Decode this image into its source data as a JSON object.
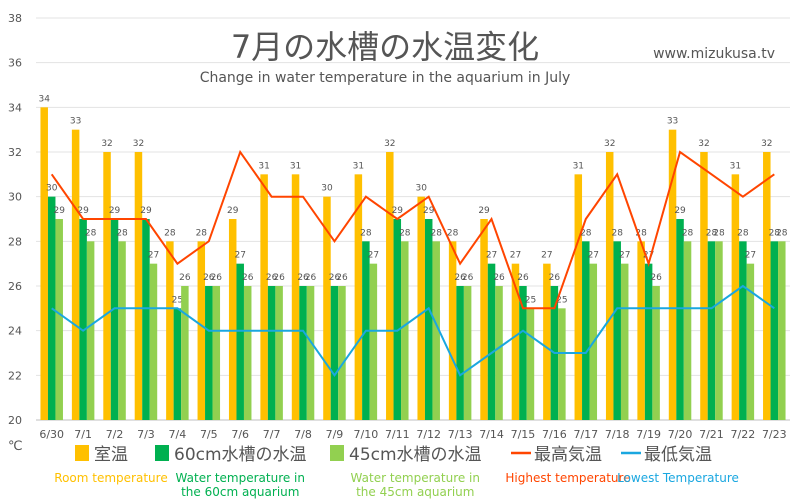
{
  "title": "7月の水槽の水温変化",
  "subtitle": "Change in water temperature in the aquarium in July",
  "source": "www.mizukusa.tv",
  "unit": "℃",
  "chart_data": {
    "type": "bar",
    "categories": [
      "6/30",
      "7/1",
      "7/2",
      "7/3",
      "7/4",
      "7/5",
      "7/6",
      "7/7",
      "7/8",
      "7/9",
      "7/10",
      "7/11",
      "7/12",
      "7/13",
      "7/14",
      "7/15",
      "7/16",
      "7/17",
      "7/18",
      "7/19",
      "7/20",
      "7/21",
      "7/22",
      "7/23"
    ],
    "ylim": [
      20,
      38
    ],
    "yticks": [
      20,
      22,
      24,
      26,
      28,
      30,
      32,
      34,
      36,
      38
    ],
    "grid": true,
    "legend_position": "bottom",
    "series": [
      {
        "name": "室温",
        "sub": [
          "Room temperature"
        ],
        "kind": "bar",
        "color": "#FFC000",
        "values": [
          34,
          33,
          32,
          32,
          28,
          28,
          29,
          31,
          31,
          30,
          31,
          32,
          30,
          28,
          29,
          27,
          27,
          31,
          32,
          28,
          33,
          32,
          31,
          32
        ]
      },
      {
        "name": "60cm水槽の水温",
        "sub": [
          "Water temperature in",
          "the 60cm aquarium"
        ],
        "kind": "bar",
        "color": "#00B050",
        "values": [
          30,
          29,
          29,
          29,
          25,
          26,
          27,
          26,
          26,
          26,
          28,
          29,
          29,
          26,
          27,
          26,
          26,
          28,
          28,
          27,
          29,
          28,
          28,
          28
        ]
      },
      {
        "name": "45cm水槽の水温",
        "sub": [
          "Water temperature in",
          "the 45cm aquarium"
        ],
        "kind": "bar",
        "color": "#92D050",
        "values": [
          29,
          28,
          28,
          27,
          26,
          26,
          26,
          26,
          26,
          26,
          27,
          28,
          28,
          26,
          26,
          25,
          25,
          27,
          27,
          26,
          28,
          28,
          27,
          28
        ]
      },
      {
        "name": "最高気温",
        "sub": [
          "Highest temperature"
        ],
        "kind": "line",
        "color": "#FF4500",
        "values": [
          31,
          29,
          29,
          29,
          27,
          28,
          32,
          30,
          30,
          28,
          30,
          29,
          30,
          27,
          29,
          25,
          25,
          29,
          31,
          27,
          32,
          31,
          30,
          31
        ]
      },
      {
        "name": "最低気温",
        "sub": [
          "Lowest Temperature"
        ],
        "kind": "line",
        "color": "#1AA7E0",
        "values": [
          25,
          24,
          25,
          25,
          25,
          24,
          24,
          24,
          24,
          22,
          24,
          24,
          25,
          22,
          23,
          24,
          23,
          23,
          25,
          25,
          25,
          25,
          26,
          25
        ]
      }
    ]
  }
}
